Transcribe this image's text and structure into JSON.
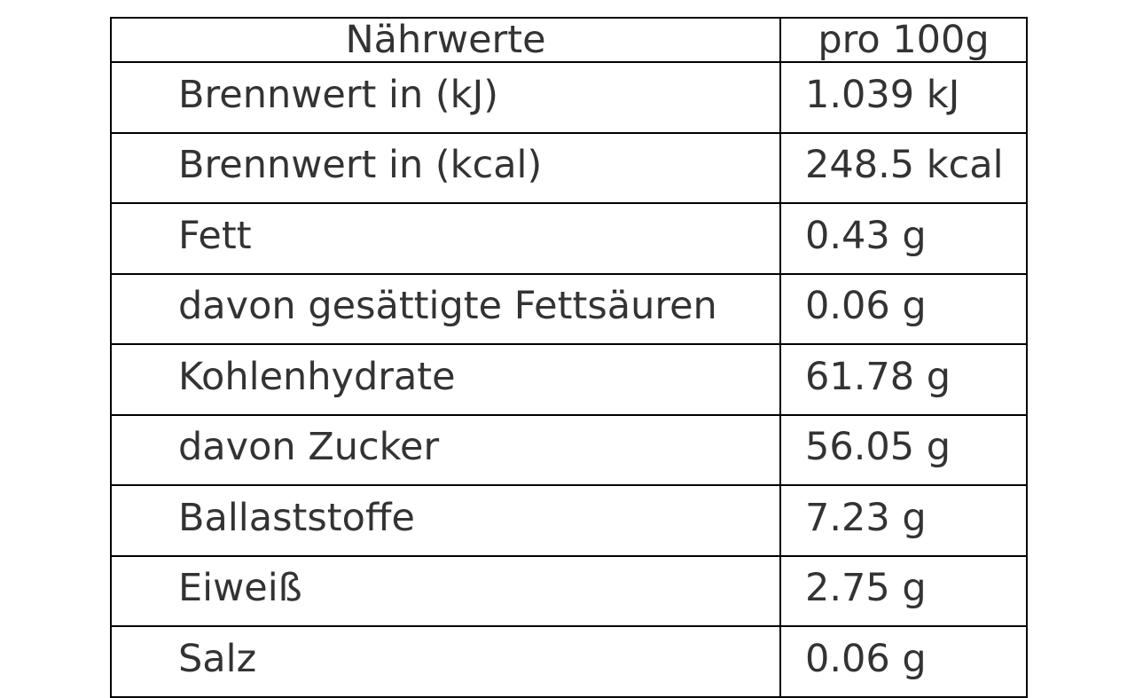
{
  "table": {
    "header": {
      "label": "Nährwerte",
      "value": "pro 100g"
    },
    "rows": [
      {
        "label": "Brennwert in (kJ)",
        "value": "1.039 kJ"
      },
      {
        "label": "Brennwert in (kcal)",
        "value": "248.5 kcal"
      },
      {
        "label": "Fett",
        "value": "0.43 g"
      },
      {
        "label": "davon gesättigte Fettsäuren",
        "value": "0.06 g"
      },
      {
        "label": "Kohlenhydrate",
        "value": "61.78 g"
      },
      {
        "label": "davon Zucker",
        "value": "56.05 g"
      },
      {
        "label": "Ballaststoffe",
        "value": "7.23 g"
      },
      {
        "label": "Eiweiß",
        "value": "2.75 g"
      },
      {
        "label": "Salz",
        "value": "0.06 g"
      }
    ]
  }
}
